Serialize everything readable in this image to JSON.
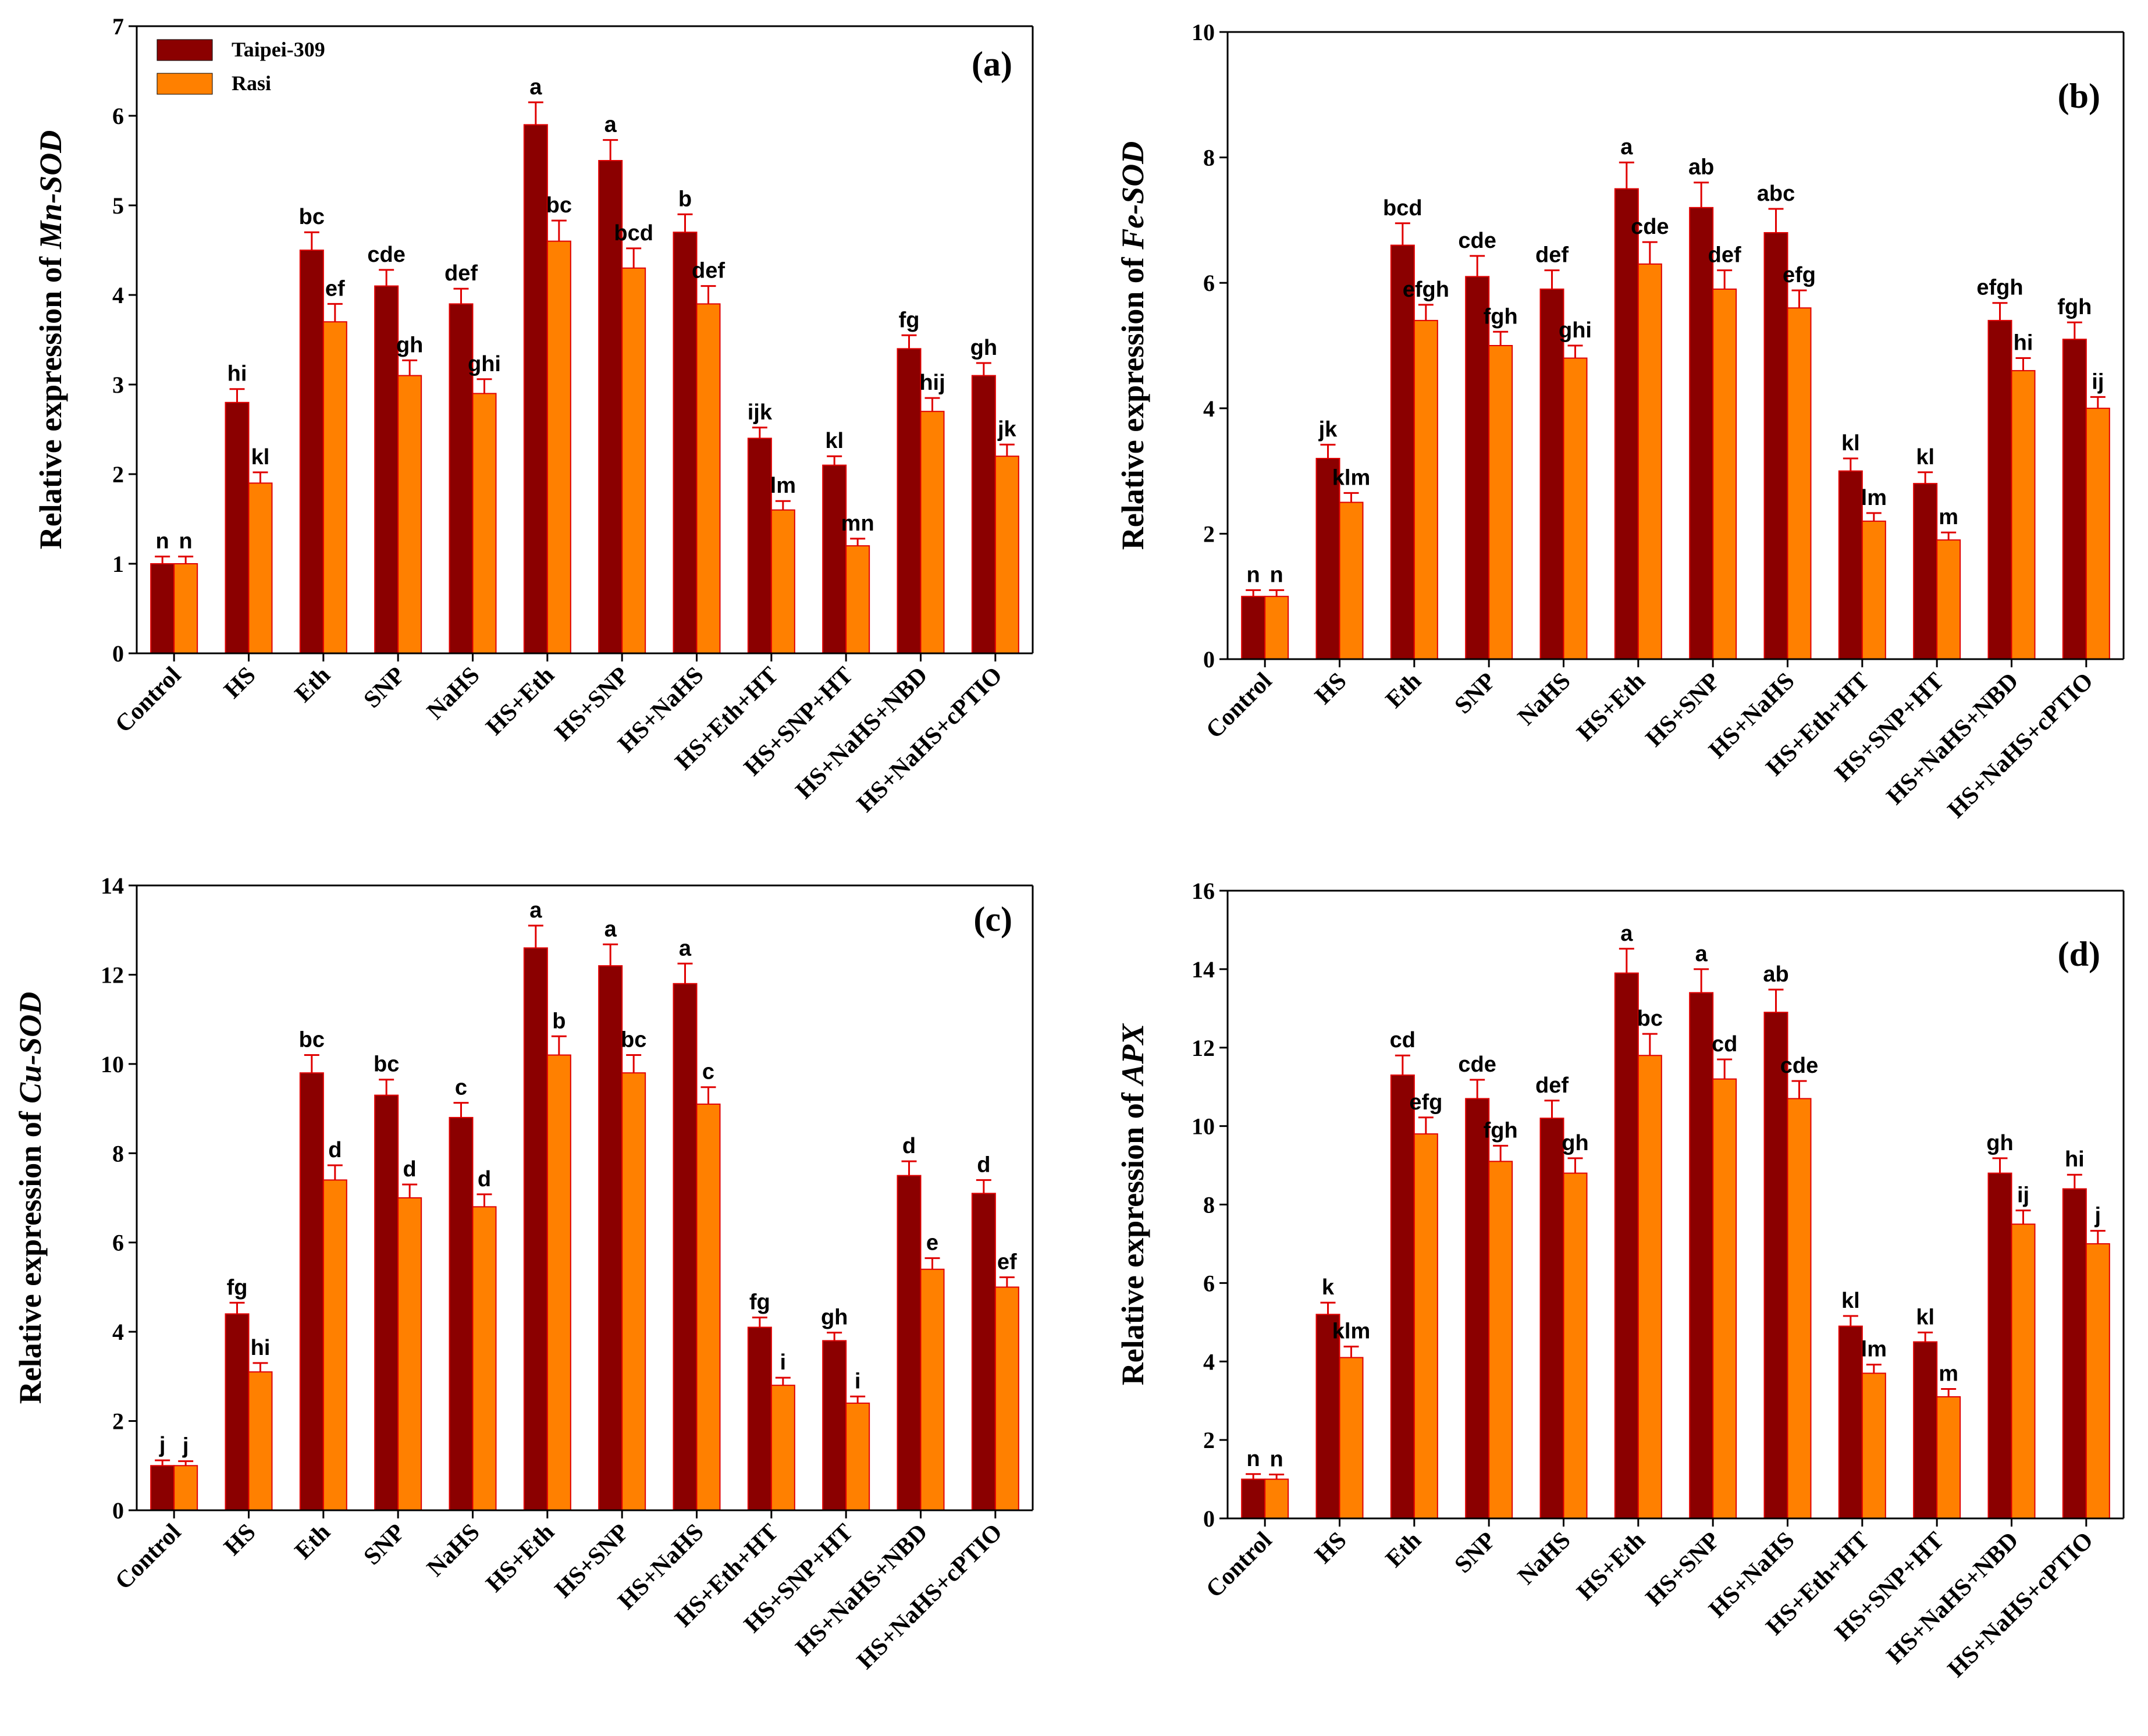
{
  "colors": {
    "taipei": "#8b0000",
    "rasi": "#ff8000",
    "error_bar": "#e00000",
    "axis": "#000000"
  },
  "legend": {
    "series": [
      "Taipei-309",
      "Rasi"
    ]
  },
  "chart_data": [
    {
      "type": "bar",
      "panel_tag": "(a)",
      "ylabel_prefix": "Relative expression of ",
      "ylabel_gene": "Mn-SOD",
      "ylim": [
        0,
        7
      ],
      "yticks": [
        "0",
        "1",
        "2",
        "3",
        "4",
        "5",
        "6",
        "7"
      ],
      "categories": [
        "Control",
        "HS",
        "Eth",
        "SNP",
        "NaHS",
        "HS+Eth",
        "HS+SNP",
        "HS+NaHS",
        "HS+Eth+HT",
        "HS+SNP+HT",
        "HS+NaHS+NBD",
        "HS+NaHS+cPTIO"
      ],
      "series": [
        {
          "name": "Taipei-309",
          "values": [
            1.0,
            2.8,
            4.5,
            4.1,
            3.9,
            5.9,
            5.5,
            4.7,
            2.4,
            2.1,
            3.4,
            3.1
          ],
          "errors": [
            0.08,
            0.15,
            0.2,
            0.18,
            0.17,
            0.25,
            0.23,
            0.2,
            0.12,
            0.1,
            0.15,
            0.14
          ],
          "letters": [
            "n",
            "hi",
            "bc",
            "cde",
            "def",
            "a",
            "a",
            "b",
            "ijk",
            "kl",
            "fg",
            "gh"
          ]
        },
        {
          "name": "Rasi",
          "values": [
            1.0,
            1.9,
            3.7,
            3.1,
            2.9,
            4.6,
            4.3,
            3.9,
            1.6,
            1.2,
            2.7,
            2.2
          ],
          "errors": [
            0.08,
            0.12,
            0.2,
            0.17,
            0.16,
            0.23,
            0.22,
            0.2,
            0.1,
            0.08,
            0.15,
            0.13
          ],
          "letters": [
            "n",
            "kl",
            "ef",
            "gh",
            "ghi",
            "bc",
            "bcd",
            "def",
            "lm",
            "mn",
            "hij",
            "jk"
          ]
        }
      ],
      "legend_visible": true
    },
    {
      "type": "bar",
      "panel_tag": "(b)",
      "ylabel_prefix": "Relative expression of ",
      "ylabel_gene": "Fe-SOD",
      "ylim": [
        0,
        10
      ],
      "yticks": [
        "0",
        "2",
        "4",
        "6",
        "8",
        "10"
      ],
      "categories": [
        "Control",
        "HS",
        "Eth",
        "SNP",
        "NaHS",
        "HS+Eth",
        "HS+SNP",
        "HS+NaHS",
        "HS+Eth+HT",
        "HS+SNP+HT",
        "HS+NaHS+NBD",
        "HS+NaHS+cPTIO"
      ],
      "series": [
        {
          "name": "Taipei-309",
          "values": [
            1.0,
            3.2,
            6.6,
            6.1,
            5.9,
            7.5,
            7.2,
            6.8,
            3.0,
            2.8,
            5.4,
            5.1
          ],
          "errors": [
            0.1,
            0.22,
            0.35,
            0.33,
            0.3,
            0.42,
            0.4,
            0.38,
            0.2,
            0.18,
            0.28,
            0.27
          ],
          "letters": [
            "n",
            "jk",
            "bcd",
            "cde",
            "def",
            "a",
            "ab",
            "abc",
            "kl",
            "kl",
            "efgh",
            "fgh"
          ]
        },
        {
          "name": "Rasi",
          "values": [
            1.0,
            2.5,
            5.4,
            5.0,
            4.8,
            6.3,
            5.9,
            5.6,
            2.2,
            1.9,
            4.6,
            4.0
          ],
          "errors": [
            0.1,
            0.15,
            0.25,
            0.22,
            0.2,
            0.35,
            0.3,
            0.28,
            0.13,
            0.12,
            0.2,
            0.18
          ],
          "letters": [
            "n",
            "klm",
            "efgh",
            "fgh",
            "ghi",
            "cde",
            "def",
            "efg",
            "lm",
            "m",
            "hi",
            "ij"
          ]
        }
      ],
      "legend_visible": false
    },
    {
      "type": "bar",
      "panel_tag": "(c)",
      "ylabel_prefix": "Relative expression of ",
      "ylabel_gene": "Cu-SOD",
      "ylim": [
        0,
        14
      ],
      "yticks": [
        "0",
        "2",
        "4",
        "6",
        "8",
        "10",
        "12",
        "14"
      ],
      "categories": [
        "Control",
        "HS",
        "Eth",
        "SNP",
        "NaHS",
        "HS+Eth",
        "HS+SNP",
        "HS+NaHS",
        "HS+Eth+HT",
        "HS+SNP+HT",
        "HS+NaHS+NBD",
        "HS+NaHS+cPTIO"
      ],
      "series": [
        {
          "name": "Taipei-309",
          "values": [
            1.0,
            4.4,
            9.8,
            9.3,
            8.8,
            12.6,
            12.2,
            11.8,
            4.1,
            3.8,
            7.5,
            7.1
          ],
          "errors": [
            0.12,
            0.25,
            0.4,
            0.35,
            0.33,
            0.5,
            0.48,
            0.45,
            0.22,
            0.18,
            0.32,
            0.3
          ],
          "letters": [
            "j",
            "fg",
            "bc",
            "bc",
            "c",
            "a",
            "a",
            "a",
            "fg",
            "gh",
            "d",
            "d"
          ]
        },
        {
          "name": "Rasi",
          "values": [
            1.0,
            3.1,
            7.4,
            7.0,
            6.8,
            10.2,
            9.8,
            9.1,
            2.8,
            2.4,
            5.4,
            5.0
          ],
          "errors": [
            0.1,
            0.2,
            0.33,
            0.3,
            0.28,
            0.42,
            0.4,
            0.38,
            0.17,
            0.15,
            0.25,
            0.22
          ],
          "letters": [
            "j",
            "hi",
            "d",
            "d",
            "d",
            "b",
            "bc",
            "c",
            "i",
            "i",
            "e",
            "ef"
          ]
        }
      ],
      "legend_visible": false
    },
    {
      "type": "bar",
      "panel_tag": "(d)",
      "ylabel_prefix": "Relative expression of ",
      "ylabel_gene": "APX",
      "ylim": [
        0,
        16
      ],
      "yticks": [
        "0",
        "2",
        "4",
        "6",
        "8",
        "10",
        "12",
        "14",
        "16"
      ],
      "categories": [
        "Control",
        "HS",
        "Eth",
        "SNP",
        "NaHS",
        "HS+Eth",
        "HS+SNP",
        "HS+NaHS",
        "HS+Eth+HT",
        "HS+SNP+HT",
        "HS+NaHS+NBD",
        "HS+NaHS+cPTIO"
      ],
      "series": [
        {
          "name": "Taipei-309",
          "values": [
            1.0,
            5.2,
            11.3,
            10.7,
            10.2,
            13.9,
            13.4,
            12.9,
            4.9,
            4.5,
            8.8,
            8.4
          ],
          "errors": [
            0.13,
            0.3,
            0.5,
            0.48,
            0.45,
            0.62,
            0.6,
            0.58,
            0.26,
            0.24,
            0.38,
            0.36
          ],
          "letters": [
            "n",
            "k",
            "cd",
            "cde",
            "def",
            "a",
            "a",
            "ab",
            "kl",
            "kl",
            "gh",
            "hi"
          ]
        },
        {
          "name": "Rasi",
          "values": [
            1.0,
            4.1,
            9.8,
            9.1,
            8.8,
            11.8,
            11.2,
            10.7,
            3.7,
            3.1,
            7.5,
            7.0
          ],
          "errors": [
            0.12,
            0.28,
            0.42,
            0.4,
            0.38,
            0.55,
            0.5,
            0.45,
            0.22,
            0.2,
            0.35,
            0.33
          ],
          "letters": [
            "n",
            "klm",
            "efg",
            "fgh",
            "gh",
            "bc",
            "cd",
            "cde",
            "lm",
            "m",
            "ij",
            "j"
          ]
        }
      ],
      "legend_visible": false
    }
  ]
}
